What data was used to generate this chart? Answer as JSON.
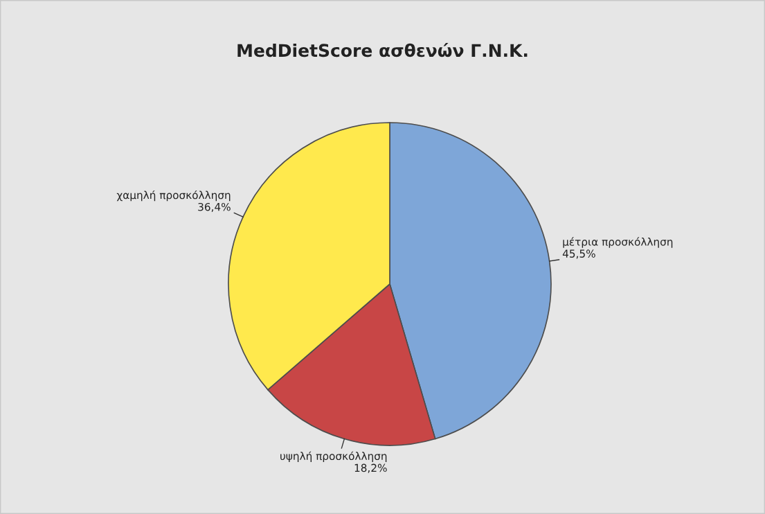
{
  "chart_data": {
    "type": "pie",
    "title": "MedDietScore ασθενών Γ.Ν.Κ.",
    "categories": [
      "μέτρια προσκόλληση",
      "υψηλή προσκόλληση",
      "χαμηλή προσκόλληση"
    ],
    "values": [
      45.5,
      18.2,
      36.4
    ],
    "value_labels": [
      "45,5%",
      "18,2%",
      "36,4%"
    ],
    "colors": [
      "#7ea6d8",
      "#c84646",
      "#ffe94d"
    ],
    "legend": false
  }
}
